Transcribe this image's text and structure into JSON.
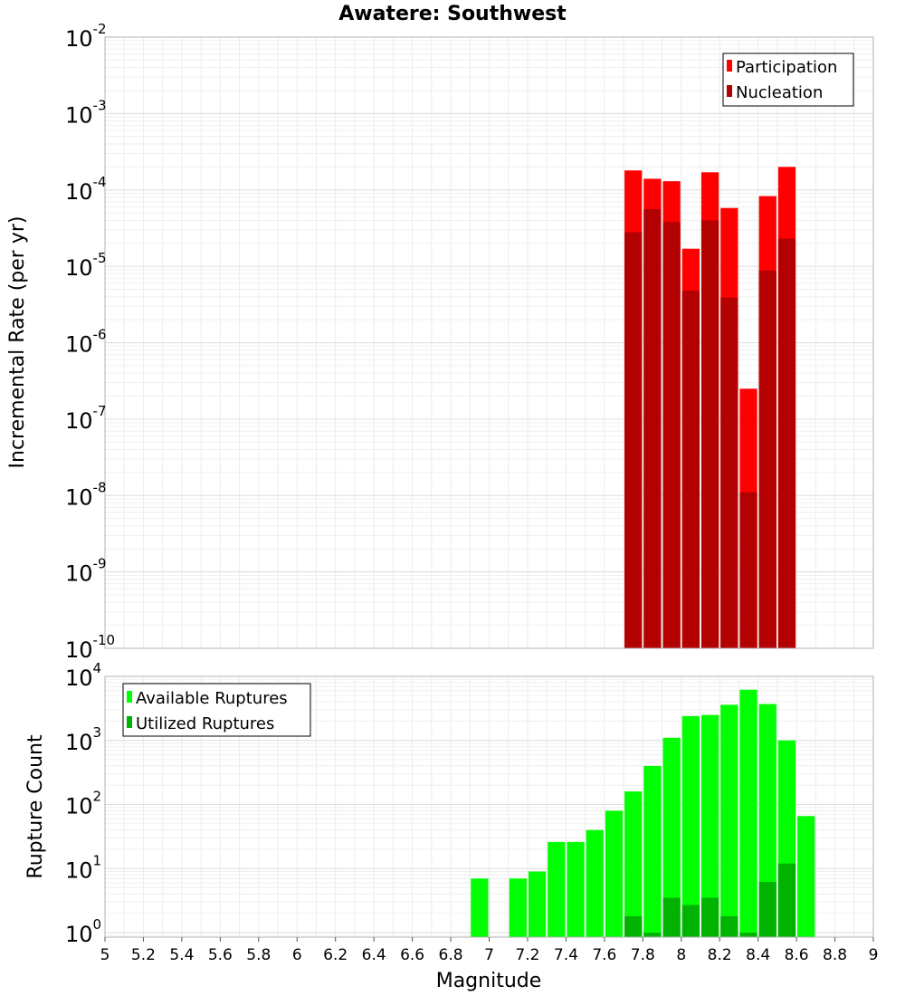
{
  "chart_data": [
    {
      "type": "bar",
      "title": "Awatere: Southwest",
      "xlabel": "",
      "ylabel": "Incremental Rate (per yr)",
      "yscale": "log",
      "ylim": [
        1e-10,
        0.01
      ],
      "xlim": [
        5,
        9
      ],
      "bin_width": 0.1,
      "grid": true,
      "legend_position": "top-right",
      "y_tick_exponents": [
        "-10",
        "-9",
        "-8",
        "-7",
        "-6",
        "-5",
        "-4",
        "-3",
        "-2"
      ],
      "y_tick_base": "10",
      "series": [
        {
          "name": "Participation",
          "color": "#ff0000",
          "x": [
            7.75,
            7.85,
            7.95,
            8.05,
            8.15,
            8.25,
            8.35,
            8.45,
            8.55
          ],
          "values": [
            0.00018,
            0.00014,
            0.00013,
            1.7e-05,
            0.00017,
            5.8e-05,
            2.5e-07,
            8.3e-05,
            0.0002
          ]
        },
        {
          "name": "Nucleation",
          "color": "#b30000",
          "x": [
            7.75,
            7.85,
            7.95,
            8.05,
            8.15,
            8.25,
            8.35,
            8.45,
            8.55
          ],
          "values": [
            2.8e-05,
            5.6e-05,
            3.8e-05,
            4.8e-06,
            4e-05,
            3.9e-06,
            1.1e-08,
            8.8e-06,
            2.3e-05
          ]
        }
      ]
    },
    {
      "type": "bar",
      "xlabel": "Magnitude",
      "ylabel": "Rupture Count",
      "yscale": "log",
      "ylim": [
        0.85,
        10000.0
      ],
      "xlim": [
        5,
        9
      ],
      "bin_width": 0.1,
      "grid": true,
      "legend_position": "top-left",
      "y_tick_exponents": [
        "0",
        "1",
        "2",
        "3",
        "4"
      ],
      "y_tick_base": "10",
      "x_ticks": [
        "5",
        "5.2",
        "5.4",
        "5.6",
        "5.8",
        "6",
        "6.2",
        "6.4",
        "6.6",
        "6.8",
        "7",
        "7.2",
        "7.4",
        "7.6",
        "7.8",
        "8",
        "8.2",
        "8.4",
        "8.6",
        "8.8",
        "9"
      ],
      "series": [
        {
          "name": "Available Ruptures",
          "color": "#00ff00",
          "x": [
            6.95,
            7.15,
            7.25,
            7.35,
            7.45,
            7.55,
            7.65,
            7.75,
            7.85,
            7.95,
            8.05,
            8.15,
            8.25,
            8.35,
            8.45,
            8.55,
            8.65
          ],
          "values": [
            7,
            7,
            9,
            26,
            26,
            40,
            80,
            160,
            400,
            1100,
            2400,
            2500,
            3600,
            6200,
            3700,
            1000,
            66
          ]
        },
        {
          "name": "Utilized Ruptures",
          "color": "#00b300",
          "x": [
            7.75,
            7.85,
            7.95,
            8.05,
            8.15,
            8.25,
            8.35,
            8.45,
            8.55
          ],
          "values": [
            1.8,
            1.0,
            3.5,
            2.7,
            3.5,
            1.8,
            1.0,
            6.2,
            12
          ]
        }
      ]
    }
  ]
}
